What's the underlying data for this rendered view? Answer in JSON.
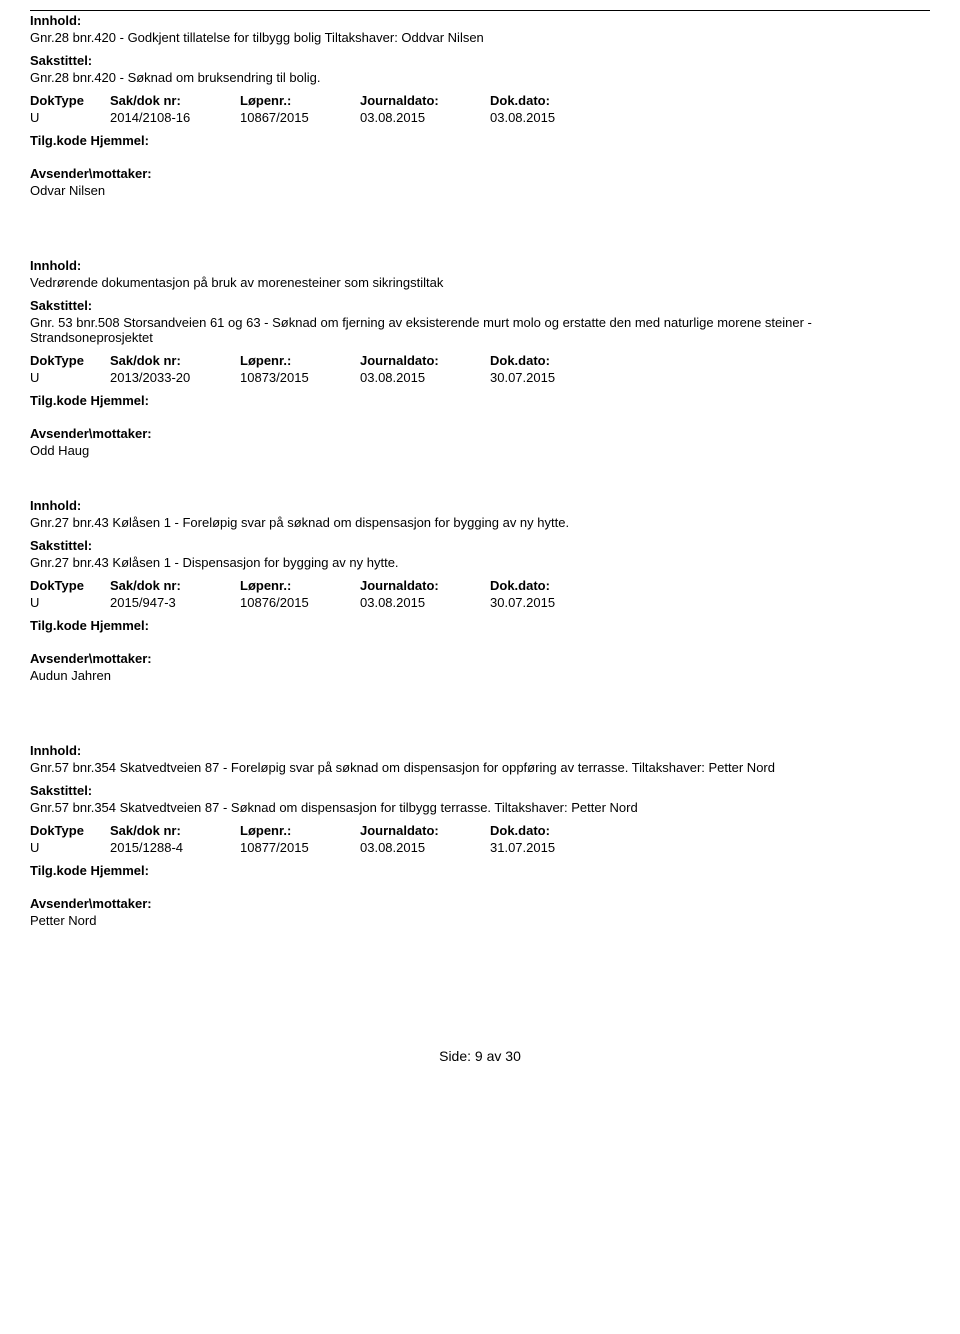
{
  "labels": {
    "innhold": "Innhold:",
    "sakstittel": "Sakstittel:",
    "doktype": "DokType",
    "sak_dok_nr": "Sak/dok nr:",
    "lopenr": "Løpenr.:",
    "journaldato": "Journaldato:",
    "dokdato": "Dok.dato:",
    "tilgkode": "Tilg.kode",
    "hjemmel": "Hjemmel:",
    "avsender": "Avsender\\mottaker:"
  },
  "entries": [
    {
      "innhold": "Gnr.28 bnr.420 - Godkjent tillatelse for tilbygg bolig Tiltakshaver: Oddvar Nilsen",
      "sakstittel": "Gnr.28 bnr.420 - Søknad om bruksendring til bolig.",
      "doktype": "U",
      "sak": "2014/2108-16",
      "lopenr": "10867/2015",
      "journaldato": "03.08.2015",
      "dokdato": "03.08.2015",
      "avsender": "Odvar Nilsen"
    },
    {
      "innhold": "Vedrørende dokumentasjon på bruk av morenesteiner som sikringstiltak",
      "sakstittel": "Gnr. 53 bnr.508 Storsandveien 61 og 63 - Søknad om fjerning av eksisterende murt molo og erstatte den med naturlige morene steiner - Strandsoneprosjektet",
      "doktype": "U",
      "sak": "2013/2033-20",
      "lopenr": "10873/2015",
      "journaldato": "03.08.2015",
      "dokdato": "30.07.2015",
      "avsender": "Odd Haug"
    },
    {
      "innhold": "Gnr.27 bnr.43 Kølåsen 1 - Foreløpig svar på søknad om dispensasjon for bygging av ny hytte.",
      "sakstittel": "Gnr.27 bnr.43 Kølåsen 1 - Dispensasjon for bygging av ny hytte.",
      "doktype": "U",
      "sak": "2015/947-3",
      "lopenr": "10876/2015",
      "journaldato": "03.08.2015",
      "dokdato": "30.07.2015",
      "avsender": "Audun Jahren"
    },
    {
      "innhold": "Gnr.57 bnr.354 Skatvedtveien 87 - Foreløpig svar på søknad om dispensasjon for oppføring av terrasse. Tiltakshaver: Petter Nord",
      "sakstittel": "Gnr.57 bnr.354 Skatvedtveien 87 - Søknad om dispensasjon for tilbygg terrasse. Tiltakshaver: Petter Nord",
      "doktype": "U",
      "sak": "2015/1288-4",
      "lopenr": "10877/2015",
      "journaldato": "03.08.2015",
      "dokdato": "31.07.2015",
      "avsender": "Petter Nord"
    }
  ],
  "footer": {
    "side": "Side:",
    "page": "9",
    "av": "av",
    "total": "30"
  }
}
